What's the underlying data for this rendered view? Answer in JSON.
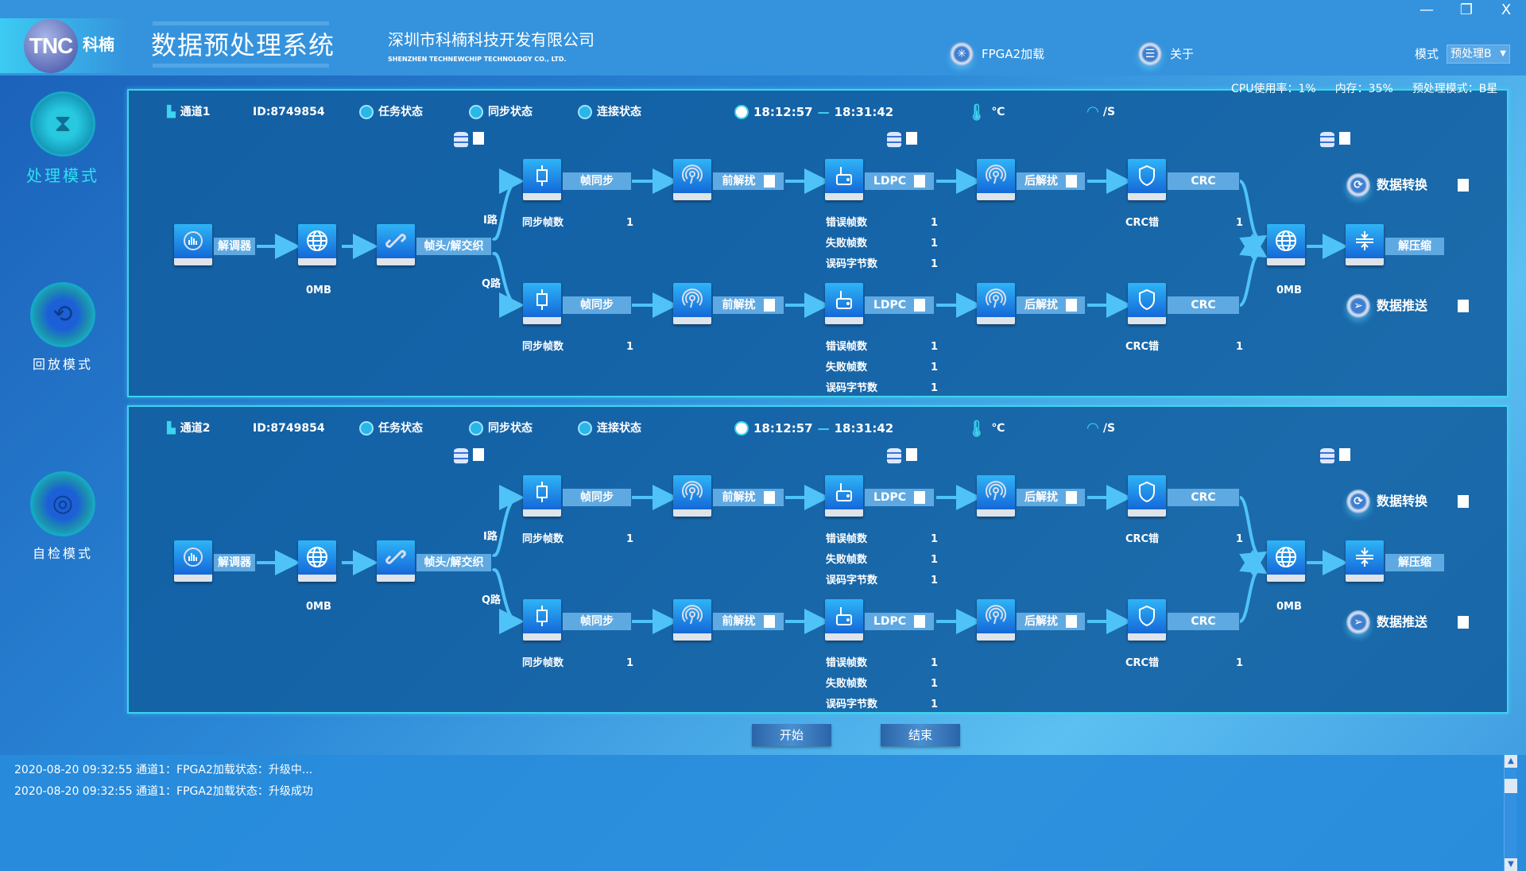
{
  "window": {
    "logo": "TNC",
    "logo_cn": "科楠",
    "title": "数据预处理系统",
    "company_cn": "深圳市科楠科技开发有限公司",
    "company_en": "SHENZHEN TECHNEWCHIP TECHNOLOGY CO., LTD.",
    "minimize": "—",
    "restore": "❐",
    "close": "X"
  },
  "toolbar": {
    "fpga": "FPGA2加载",
    "about": "关于",
    "mode_label": "模式",
    "mode_value": "预处理B"
  },
  "sidebar": [
    {
      "label": "处理模式",
      "active": true,
      "icon": "hourglass-gear-icon"
    },
    {
      "label": "回放模式",
      "icon": "replay-gear-icon"
    },
    {
      "label": "自检模式",
      "icon": "radar-gear-icon"
    }
  ],
  "system": {
    "cpu": "CPU使用率：1%",
    "mem": "内存：35%",
    "premode": "预处理模式：B星"
  },
  "channels": [
    {
      "name": "通道1",
      "id": "ID:8749854",
      "task": "任务状态",
      "sync": "同步状态",
      "conn": "连接状态",
      "start_time": "18:12:57",
      "dash": "—",
      "end_time": "18:31:42",
      "temp_unit": "℃",
      "rate_unit": "/S",
      "demod": "解调器",
      "input_size": "0MB",
      "deint": "帧头/解交织",
      "i_path": "I路",
      "q_path": "Q路",
      "output_size": "0MB",
      "decompress": "解压缩",
      "convert": "数据转换",
      "push": "数据推送",
      "paths": [
        {
          "frame_sync": "帧同步",
          "pre_descramble": "前解扰",
          "ldpc": "LDPC",
          "post_descramble": "后解扰",
          "crc": "CRC",
          "sync_count_label": "同步帧数",
          "sync_count": "1",
          "err_label": "错误帧数",
          "err": "1",
          "fail_label": "失败帧数",
          "fail": "1",
          "byte_err_label": "误码字节数",
          "byte_err": "1",
          "crc_err_label": "CRC错",
          "crc_err": "1"
        },
        {
          "frame_sync": "帧同步",
          "pre_descramble": "前解扰",
          "ldpc": "LDPC",
          "post_descramble": "后解扰",
          "crc": "CRC",
          "sync_count_label": "同步帧数",
          "sync_count": "1",
          "err_label": "错误帧数",
          "err": "1",
          "fail_label": "失败帧数",
          "fail": "1",
          "byte_err_label": "误码字节数",
          "byte_err": "1",
          "crc_err_label": "CRC错",
          "crc_err": "1"
        }
      ]
    },
    {
      "name": "通道2",
      "id": "ID:8749854",
      "task": "任务状态",
      "sync": "同步状态",
      "conn": "连接状态",
      "start_time": "18:12:57",
      "dash": "—",
      "end_time": "18:31:42",
      "temp_unit": "℃",
      "rate_unit": "/S",
      "demod": "解调器",
      "input_size": "0MB",
      "deint": "帧头/解交织",
      "i_path": "I路",
      "q_path": "Q路",
      "output_size": "0MB",
      "decompress": "解压缩",
      "convert": "数据转换",
      "push": "数据推送",
      "paths": [
        {
          "frame_sync": "帧同步",
          "pre_descramble": "前解扰",
          "ldpc": "LDPC",
          "post_descramble": "后解扰",
          "crc": "CRC",
          "sync_count_label": "同步帧数",
          "sync_count": "1",
          "err_label": "错误帧数",
          "err": "1",
          "fail_label": "失败帧数",
          "fail": "1",
          "byte_err_label": "误码字节数",
          "byte_err": "1",
          "crc_err_label": "CRC错",
          "crc_err": "1"
        },
        {
          "frame_sync": "帧同步",
          "pre_descramble": "前解扰",
          "ldpc": "LDPC",
          "post_descramble": "后解扰",
          "crc": "CRC",
          "sync_count_label": "同步帧数",
          "sync_count": "1",
          "err_label": "错误帧数",
          "err": "1",
          "fail_label": "失败帧数",
          "fail": "1",
          "byte_err_label": "误码字节数",
          "byte_err": "1",
          "crc_err_label": "CRC错",
          "crc_err": "1"
        }
      ]
    }
  ],
  "controls": {
    "start": "开始",
    "stop": "结束"
  },
  "log": [
    "2020-08-20 09:32:55 通道1：FPGA2加载状态：升级中...",
    "2020-08-20 09:32:55 通道1：FPGA2加载状态：升级成功"
  ],
  "colors": {
    "header": "#3593dd",
    "panel_border": "#3ed3ef",
    "label_box": "#5fa9e2",
    "arrow": "#4fc3f7",
    "active_mode": "#2de1f0"
  }
}
